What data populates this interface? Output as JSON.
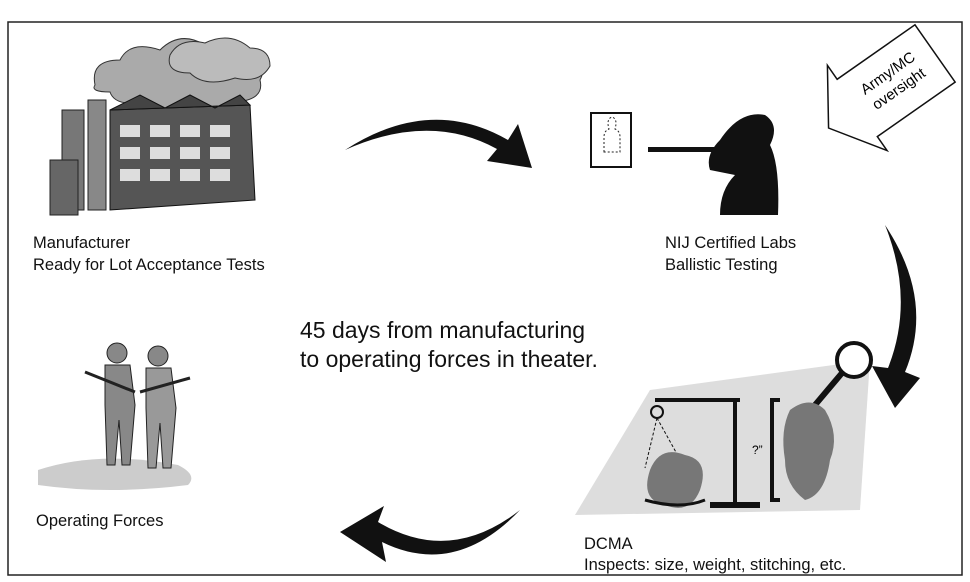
{
  "nodes": [
    {
      "label": [
        "Manufacturer",
        "Ready for Lot Acceptance Tests"
      ]
    },
    {
      "label": [
        "NIJ Certified Labs",
        "Ballistic Testing"
      ]
    },
    {
      "label": [
        "DCMA",
        "Inspects: size, weight, stitching, etc."
      ]
    },
    {
      "label": [
        "Operating Forces"
      ]
    }
  ],
  "center_text": [
    "45 days from manufacturing",
    "to operating forces in theater."
  ],
  "oversight": {
    "label": [
      "Army/MC",
      "oversight"
    ]
  },
  "inspection_mark": "?”"
}
